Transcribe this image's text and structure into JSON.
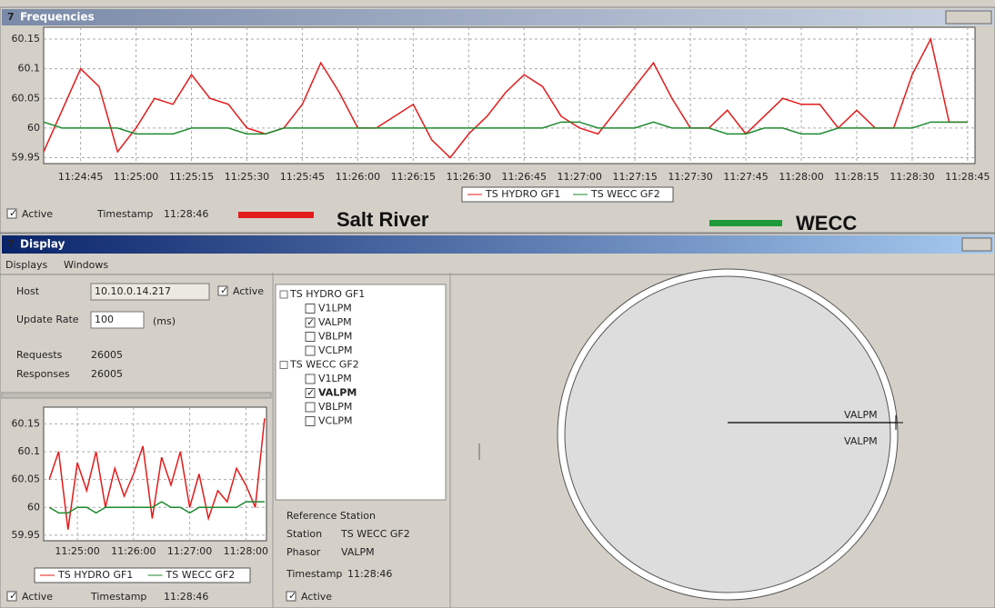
{
  "frequencies_window": {
    "title": "Frequencies",
    "active": "Active",
    "timestamp_label": "Timestamp",
    "timestamp": "11:28:46",
    "annotations": [
      {
        "text": "Salt River",
        "color": "#e31b1b"
      },
      {
        "text": "WECC",
        "color": "#1e9a3a"
      }
    ]
  },
  "display_window": {
    "title": "Display",
    "menu": [
      "Displays",
      "Windows"
    ],
    "host_label": "Host",
    "host": "10.10.0.14.217",
    "host_active": "Active",
    "update_rate_label": "Update Rate",
    "update_rate": "100",
    "update_rate_unit": "(ms)",
    "requests_label": "Requests",
    "requests": "26005",
    "responses_label": "Responses",
    "responses": "26005",
    "chart_active": "Active",
    "chart_timestamp_label": "Timestamp",
    "chart_timestamp": "11:28:46",
    "tree": [
      {
        "label": "TS HYDRO GF1",
        "children": [
          {
            "label": "V1LPM",
            "checked": false
          },
          {
            "label": "VALPM",
            "checked": true
          },
          {
            "label": "VBLPM",
            "checked": false
          },
          {
            "label": "VCLPM",
            "checked": false
          }
        ]
      },
      {
        "label": "TS WECC GF2",
        "children": [
          {
            "label": "V1LPM",
            "checked": false
          },
          {
            "label": "VALPM",
            "checked": true
          },
          {
            "label": "VBLPM",
            "checked": false
          },
          {
            "label": "VCLPM",
            "checked": false
          }
        ]
      }
    ],
    "reference": {
      "title": "Reference Station",
      "station_label": "Station",
      "station": "TS WECC GF2",
      "phasor_label": "Phasor",
      "phasor": "VALPM",
      "timestamp_label": "Timestamp",
      "timestamp": "11:28:46",
      "active": "Active"
    },
    "phasor_labels": [
      "VALPM",
      "VALPM"
    ]
  },
  "chart_data": [
    {
      "type": "line",
      "grid": true,
      "x": [
        "11:24:35",
        "11:24:40",
        "11:24:45",
        "11:24:50",
        "11:24:55",
        "11:25:00",
        "11:25:05",
        "11:25:10",
        "11:25:15",
        "11:25:20",
        "11:25:25",
        "11:25:30",
        "11:25:35",
        "11:25:40",
        "11:25:45",
        "11:25:50",
        "11:25:55",
        "11:26:00",
        "11:26:05",
        "11:26:10",
        "11:26:15",
        "11:26:20",
        "11:26:25",
        "11:26:30",
        "11:26:35",
        "11:26:40",
        "11:26:45",
        "11:26:50",
        "11:26:55",
        "11:27:00",
        "11:27:05",
        "11:27:10",
        "11:27:15",
        "11:27:20",
        "11:27:25",
        "11:27:30",
        "11:27:35",
        "11:27:40",
        "11:27:45",
        "11:27:50",
        "11:27:55",
        "11:28:00",
        "11:28:05",
        "11:28:10",
        "11:28:15",
        "11:28:20",
        "11:28:25",
        "11:28:30",
        "11:28:35",
        "11:28:40",
        "11:28:45"
      ],
      "xlim": [
        "11:24:35",
        "11:28:47"
      ],
      "xticks": [
        "11:24:45",
        "11:25:00",
        "11:25:15",
        "11:25:30",
        "11:25:45",
        "11:26:00",
        "11:26:15",
        "11:26:30",
        "11:26:45",
        "11:27:00",
        "11:27:15",
        "11:27:30",
        "11:27:45",
        "11:28:00",
        "11:28:15",
        "11:28:30",
        "11:28:45"
      ],
      "ylim": [
        59.94,
        60.17
      ],
      "yticks": [
        59.95,
        60,
        60.05,
        60.1,
        60.15
      ],
      "series": [
        {
          "name": "TS HYDRO GF1",
          "color": "#e31b1b",
          "values": [
            59.96,
            60.03,
            60.1,
            60.07,
            59.96,
            60,
            60.05,
            60.04,
            60.09,
            60.05,
            60.04,
            60,
            59.99,
            60,
            60.04,
            60.11,
            60.06,
            60,
            60,
            60.02,
            60.04,
            59.98,
            59.95,
            59.99,
            60.02,
            60.06,
            60.09,
            60.07,
            60.02,
            60,
            59.99,
            60.03,
            60.07,
            60.11,
            60.05,
            60,
            60,
            60.03,
            59.99,
            60.02,
            60.05,
            60.04,
            60.04,
            60,
            60.03,
            60,
            60,
            60.09,
            60.15,
            60.01,
            60.01
          ]
        },
        {
          "name": "TS WECC GF2",
          "color": "#1e8a2e",
          "values": [
            60.01,
            60,
            60,
            60,
            60,
            59.99,
            59.99,
            59.99,
            60,
            60,
            60,
            59.99,
            59.99,
            60,
            60,
            60,
            60,
            60,
            60,
            60,
            60,
            60,
            60,
            60,
            60,
            60,
            60,
            60,
            60.01,
            60.01,
            60,
            60,
            60,
            60.01,
            60,
            60,
            60,
            59.99,
            59.99,
            60,
            60,
            59.99,
            59.99,
            60,
            60,
            60,
            60,
            60,
            60.01,
            60.01,
            60.01
          ]
        }
      ]
    },
    {
      "type": "line",
      "grid": true,
      "x": [
        "11:24:30",
        "11:24:40",
        "11:24:50",
        "11:25:00",
        "11:25:10",
        "11:25:20",
        "11:25:30",
        "11:25:40",
        "11:25:50",
        "11:26:00",
        "11:26:10",
        "11:26:20",
        "11:26:30",
        "11:26:40",
        "11:26:50",
        "11:27:00",
        "11:27:10",
        "11:27:20",
        "11:27:30",
        "11:27:40",
        "11:27:50",
        "11:28:00",
        "11:28:10",
        "11:28:20"
      ],
      "xlim": [
        "11:24:24",
        "11:28:22"
      ],
      "xticks": [
        "11:25:00",
        "11:26:00",
        "11:27:00",
        "11:28:00"
      ],
      "ylim": [
        59.94,
        60.18
      ],
      "yticks": [
        59.95,
        60,
        60.05,
        60.1,
        60.15
      ],
      "series": [
        {
          "name": "TS HYDRO GF1",
          "color": "#e31b1b",
          "values": [
            60.05,
            60.1,
            59.96,
            60.08,
            60.03,
            60.1,
            60,
            60.07,
            60.02,
            60.06,
            60.11,
            59.98,
            60.09,
            60.04,
            60.1,
            60,
            60.06,
            59.98,
            60.03,
            60.01,
            60.07,
            60.04,
            60,
            60.16
          ]
        },
        {
          "name": "TS WECC GF2",
          "color": "#1e8a2e",
          "values": [
            60,
            59.99,
            59.99,
            60,
            60,
            59.99,
            60,
            60,
            60,
            60,
            60,
            60,
            60.01,
            60,
            60,
            59.99,
            60,
            60,
            60,
            60,
            60,
            60.01,
            60.01,
            60.01
          ]
        }
      ]
    }
  ]
}
